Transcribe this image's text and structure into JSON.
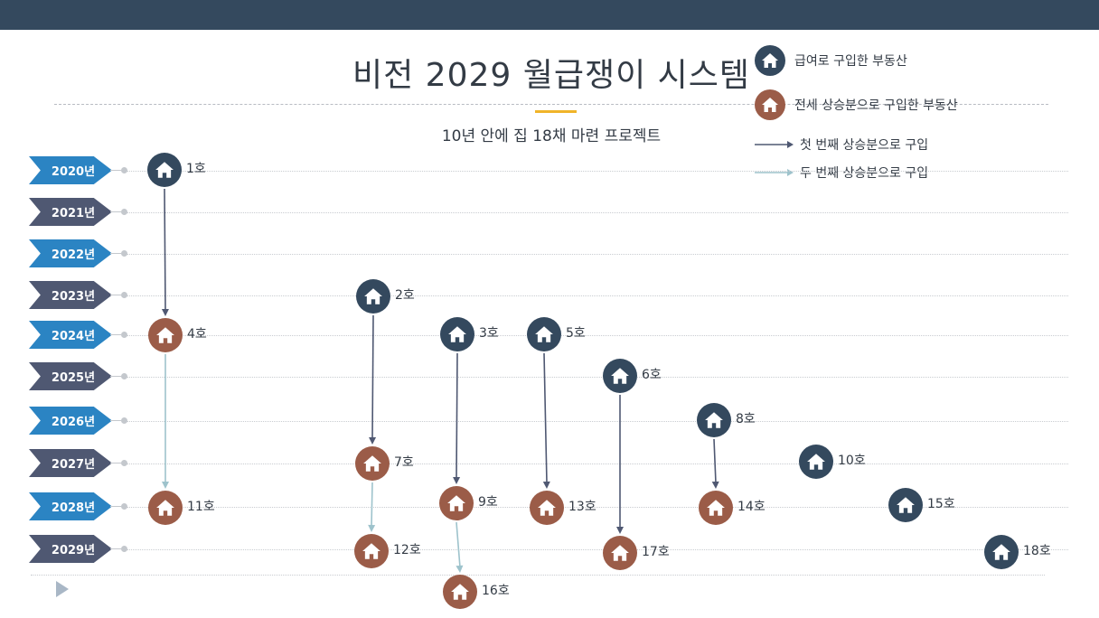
{
  "title": "비전 2029 월급쟁이 시스템",
  "subtitle": "10년 안에 집 18채 마련 프로젝트",
  "colors": {
    "header": "#34495e",
    "salary": "#34495e",
    "jeonse": "#9b5c48",
    "first": "#4f5872",
    "second": "#9ec3cc",
    "accent": "#f0b429",
    "tag_even": "#2b84c3",
    "tag_odd": "#4f5872"
  },
  "legend": {
    "salary": "급여로 구입한 부동산",
    "jeonse": "전세 상승분으로 구입한 부동산",
    "first": "첫 번째 상승분으로 구입",
    "second": "두 번째 상승분으로 구입"
  },
  "years": [
    "2020년",
    "2021년",
    "2022년",
    "2023년",
    "2024년",
    "2025년",
    "2026년",
    "2027년",
    "2028년",
    "2029년"
  ],
  "houses": [
    {
      "label": "1호",
      "type": "salary",
      "icon": "house-icon"
    },
    {
      "label": "2호",
      "type": "salary",
      "icon": "house-icon"
    },
    {
      "label": "3호",
      "type": "salary",
      "icon": "house-icon"
    },
    {
      "label": "4호",
      "type": "jeonse",
      "icon": "house-icon"
    },
    {
      "label": "5호",
      "type": "salary",
      "icon": "house-icon"
    },
    {
      "label": "6호",
      "type": "salary",
      "icon": "house-icon"
    },
    {
      "label": "7호",
      "type": "jeonse",
      "icon": "house-icon"
    },
    {
      "label": "8호",
      "type": "salary",
      "icon": "house-icon"
    },
    {
      "label": "9호",
      "type": "jeonse",
      "icon": "house-icon"
    },
    {
      "label": "10호",
      "type": "salary",
      "icon": "house-icon"
    },
    {
      "label": "11호",
      "type": "jeonse",
      "icon": "house-icon"
    },
    {
      "label": "12호",
      "type": "jeonse",
      "icon": "house-icon"
    },
    {
      "label": "13호",
      "type": "jeonse",
      "icon": "house-icon"
    },
    {
      "label": "14호",
      "type": "jeonse",
      "icon": "house-icon"
    },
    {
      "label": "15호",
      "type": "salary",
      "icon": "house-icon"
    },
    {
      "label": "16호",
      "type": "jeonse",
      "icon": "house-icon"
    },
    {
      "label": "17호",
      "type": "jeonse",
      "icon": "house-icon"
    },
    {
      "label": "18호",
      "type": "salary",
      "icon": "house-icon"
    }
  ],
  "links": [
    {
      "from": "1호",
      "to": "4호",
      "kind": "first"
    },
    {
      "from": "4호",
      "to": "11호",
      "kind": "second"
    },
    {
      "from": "2호",
      "to": "7호",
      "kind": "first"
    },
    {
      "from": "7호",
      "to": "12호",
      "kind": "second"
    },
    {
      "from": "3호",
      "to": "9호",
      "kind": "first"
    },
    {
      "from": "9호",
      "to": "16호",
      "kind": "second"
    },
    {
      "from": "5호",
      "to": "13호",
      "kind": "first"
    },
    {
      "from": "6호",
      "to": "17호",
      "kind": "first"
    },
    {
      "from": "8호",
      "to": "14호",
      "kind": "first"
    }
  ]
}
